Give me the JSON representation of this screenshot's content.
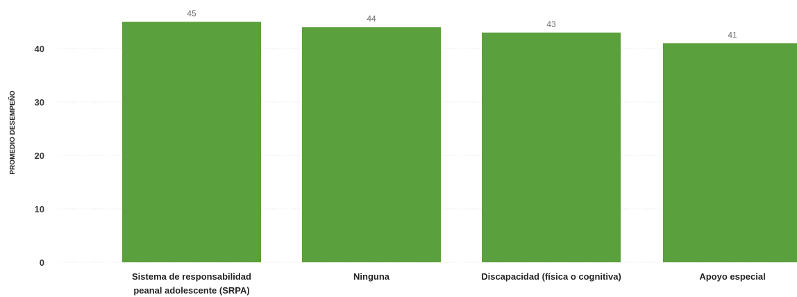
{
  "chart_data": {
    "type": "bar",
    "title": "",
    "xlabel": "",
    "ylabel": "PROMEDIO DESEMPEÑO",
    "ylim": [
      0,
      45
    ],
    "yticks": [
      0,
      10,
      20,
      30,
      40
    ],
    "grid": true,
    "categories": [
      [
        "Sistema de responsabilidad",
        "peanal adolescente (SRPA)"
      ],
      [
        "Ninguna"
      ],
      [
        "Discapacidad (física o cognitiva)"
      ],
      [
        "Apoyo especial"
      ]
    ],
    "values": [
      45,
      44,
      43,
      41
    ],
    "data_labels": [
      "45",
      "44",
      "43",
      "41"
    ],
    "bar_color": "#5aa03c"
  }
}
